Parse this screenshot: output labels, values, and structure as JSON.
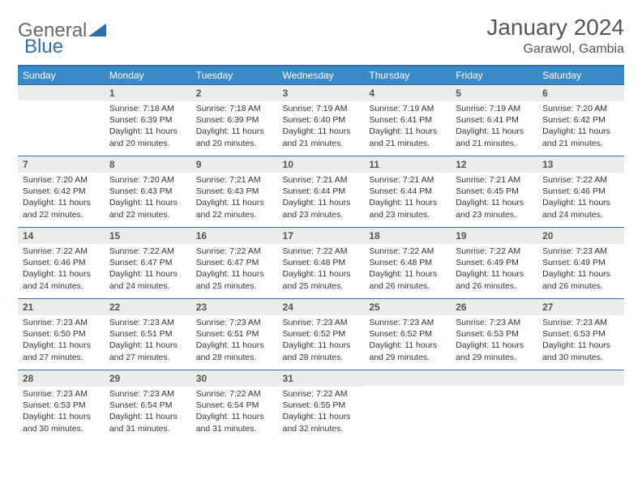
{
  "brand": {
    "part1": "General",
    "part2": "Blue"
  },
  "title": "January 2024",
  "location": "Garawol, Gambia",
  "colors": {
    "header_bg": "#3a8ac8",
    "header_border": "#2f6fa8",
    "daynum_bg": "#ececec",
    "text": "#333333",
    "brand_gray": "#6a6a6a",
    "brand_blue": "#2f6fa8"
  },
  "weekdays": [
    "Sunday",
    "Monday",
    "Tuesday",
    "Wednesday",
    "Thursday",
    "Friday",
    "Saturday"
  ],
  "weeks": [
    [
      null,
      {
        "n": "1",
        "sr": "7:18 AM",
        "ss": "6:39 PM",
        "dl": "11 hours and 20 minutes."
      },
      {
        "n": "2",
        "sr": "7:18 AM",
        "ss": "6:39 PM",
        "dl": "11 hours and 20 minutes."
      },
      {
        "n": "3",
        "sr": "7:19 AM",
        "ss": "6:40 PM",
        "dl": "11 hours and 21 minutes."
      },
      {
        "n": "4",
        "sr": "7:19 AM",
        "ss": "6:41 PM",
        "dl": "11 hours and 21 minutes."
      },
      {
        "n": "5",
        "sr": "7:19 AM",
        "ss": "6:41 PM",
        "dl": "11 hours and 21 minutes."
      },
      {
        "n": "6",
        "sr": "7:20 AM",
        "ss": "6:42 PM",
        "dl": "11 hours and 21 minutes."
      }
    ],
    [
      {
        "n": "7",
        "sr": "7:20 AM",
        "ss": "6:42 PM",
        "dl": "11 hours and 22 minutes."
      },
      {
        "n": "8",
        "sr": "7:20 AM",
        "ss": "6:43 PM",
        "dl": "11 hours and 22 minutes."
      },
      {
        "n": "9",
        "sr": "7:21 AM",
        "ss": "6:43 PM",
        "dl": "11 hours and 22 minutes."
      },
      {
        "n": "10",
        "sr": "7:21 AM",
        "ss": "6:44 PM",
        "dl": "11 hours and 23 minutes."
      },
      {
        "n": "11",
        "sr": "7:21 AM",
        "ss": "6:44 PM",
        "dl": "11 hours and 23 minutes."
      },
      {
        "n": "12",
        "sr": "7:21 AM",
        "ss": "6:45 PM",
        "dl": "11 hours and 23 minutes."
      },
      {
        "n": "13",
        "sr": "7:22 AM",
        "ss": "6:46 PM",
        "dl": "11 hours and 24 minutes."
      }
    ],
    [
      {
        "n": "14",
        "sr": "7:22 AM",
        "ss": "6:46 PM",
        "dl": "11 hours and 24 minutes."
      },
      {
        "n": "15",
        "sr": "7:22 AM",
        "ss": "6:47 PM",
        "dl": "11 hours and 24 minutes."
      },
      {
        "n": "16",
        "sr": "7:22 AM",
        "ss": "6:47 PM",
        "dl": "11 hours and 25 minutes."
      },
      {
        "n": "17",
        "sr": "7:22 AM",
        "ss": "6:48 PM",
        "dl": "11 hours and 25 minutes."
      },
      {
        "n": "18",
        "sr": "7:22 AM",
        "ss": "6:48 PM",
        "dl": "11 hours and 26 minutes."
      },
      {
        "n": "19",
        "sr": "7:22 AM",
        "ss": "6:49 PM",
        "dl": "11 hours and 26 minutes."
      },
      {
        "n": "20",
        "sr": "7:23 AM",
        "ss": "6:49 PM",
        "dl": "11 hours and 26 minutes."
      }
    ],
    [
      {
        "n": "21",
        "sr": "7:23 AM",
        "ss": "6:50 PM",
        "dl": "11 hours and 27 minutes."
      },
      {
        "n": "22",
        "sr": "7:23 AM",
        "ss": "6:51 PM",
        "dl": "11 hours and 27 minutes."
      },
      {
        "n": "23",
        "sr": "7:23 AM",
        "ss": "6:51 PM",
        "dl": "11 hours and 28 minutes."
      },
      {
        "n": "24",
        "sr": "7:23 AM",
        "ss": "6:52 PM",
        "dl": "11 hours and 28 minutes."
      },
      {
        "n": "25",
        "sr": "7:23 AM",
        "ss": "6:52 PM",
        "dl": "11 hours and 29 minutes."
      },
      {
        "n": "26",
        "sr": "7:23 AM",
        "ss": "6:53 PM",
        "dl": "11 hours and 29 minutes."
      },
      {
        "n": "27",
        "sr": "7:23 AM",
        "ss": "6:53 PM",
        "dl": "11 hours and 30 minutes."
      }
    ],
    [
      {
        "n": "28",
        "sr": "7:23 AM",
        "ss": "6:53 PM",
        "dl": "11 hours and 30 minutes."
      },
      {
        "n": "29",
        "sr": "7:23 AM",
        "ss": "6:54 PM",
        "dl": "11 hours and 31 minutes."
      },
      {
        "n": "30",
        "sr": "7:22 AM",
        "ss": "6:54 PM",
        "dl": "11 hours and 31 minutes."
      },
      {
        "n": "31",
        "sr": "7:22 AM",
        "ss": "6:55 PM",
        "dl": "11 hours and 32 minutes."
      },
      null,
      null,
      null
    ]
  ],
  "labels": {
    "sunrise": "Sunrise:",
    "sunset": "Sunset:",
    "daylight": "Daylight:"
  }
}
